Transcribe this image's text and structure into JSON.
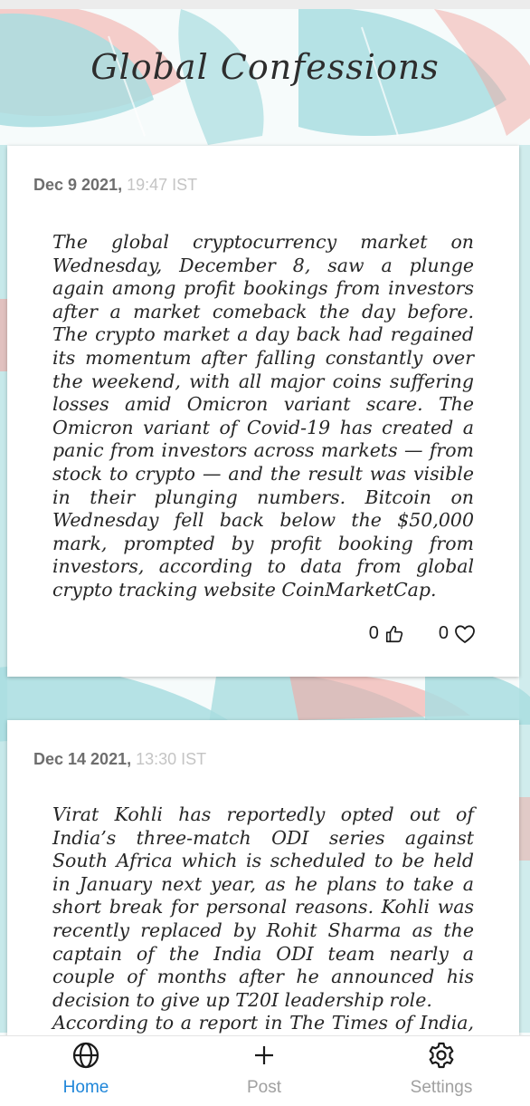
{
  "app": {
    "title": "Global Confessions"
  },
  "posts": [
    {
      "date": "Dec 9 2021,",
      "time": "19:47 IST",
      "text": "The global cryptocurrency market on Wednesday, December 8, saw a plunge again among profit bookings from investors after a market comeback the day before. The crypto market a day back had regained its momentum after falling constantly over the weekend, with all major coins suffering losses amid Omicron variant scare. The Omicron variant of Covid-19 has created a panic from investors across markets — from stock to crypto — and the result was visible in their plunging numbers. Bitcoin on Wednesday fell back below the $50,000 mark, prompted by profit booking from investors, according to data from global crypto tracking website CoinMarketCap.",
      "likes": "0",
      "hearts": "0"
    },
    {
      "date": "Dec 14 2021,",
      "time": "13:30 IST",
      "text": "Virat Kohli has reportedly opted out of India’s three-match ODI series against South Africa which is scheduled to be held in January next year, as he plans to take a short break for personal reasons. Kohli was recently replaced by Rohit Sharma as the captain of the India ODI team nearly a couple of months after he announced his decision to give up T20I leadership role.",
      "text2": "According to a report in The Times of India, Kohli has already informed BCCI of his plans to spend"
    }
  ],
  "nav": {
    "home": "Home",
    "post": "Post",
    "settings": "Settings"
  },
  "colors": {
    "active": "#1f86d9",
    "inactive": "#a0a0a0",
    "leaf": "#a9dde0",
    "leaf_accent": "#f2a7a2"
  },
  "icons": {
    "home": "globe-icon",
    "post": "plus-icon",
    "settings": "gear-icon",
    "like": "thumbs-up-icon",
    "heart": "heart-icon"
  }
}
